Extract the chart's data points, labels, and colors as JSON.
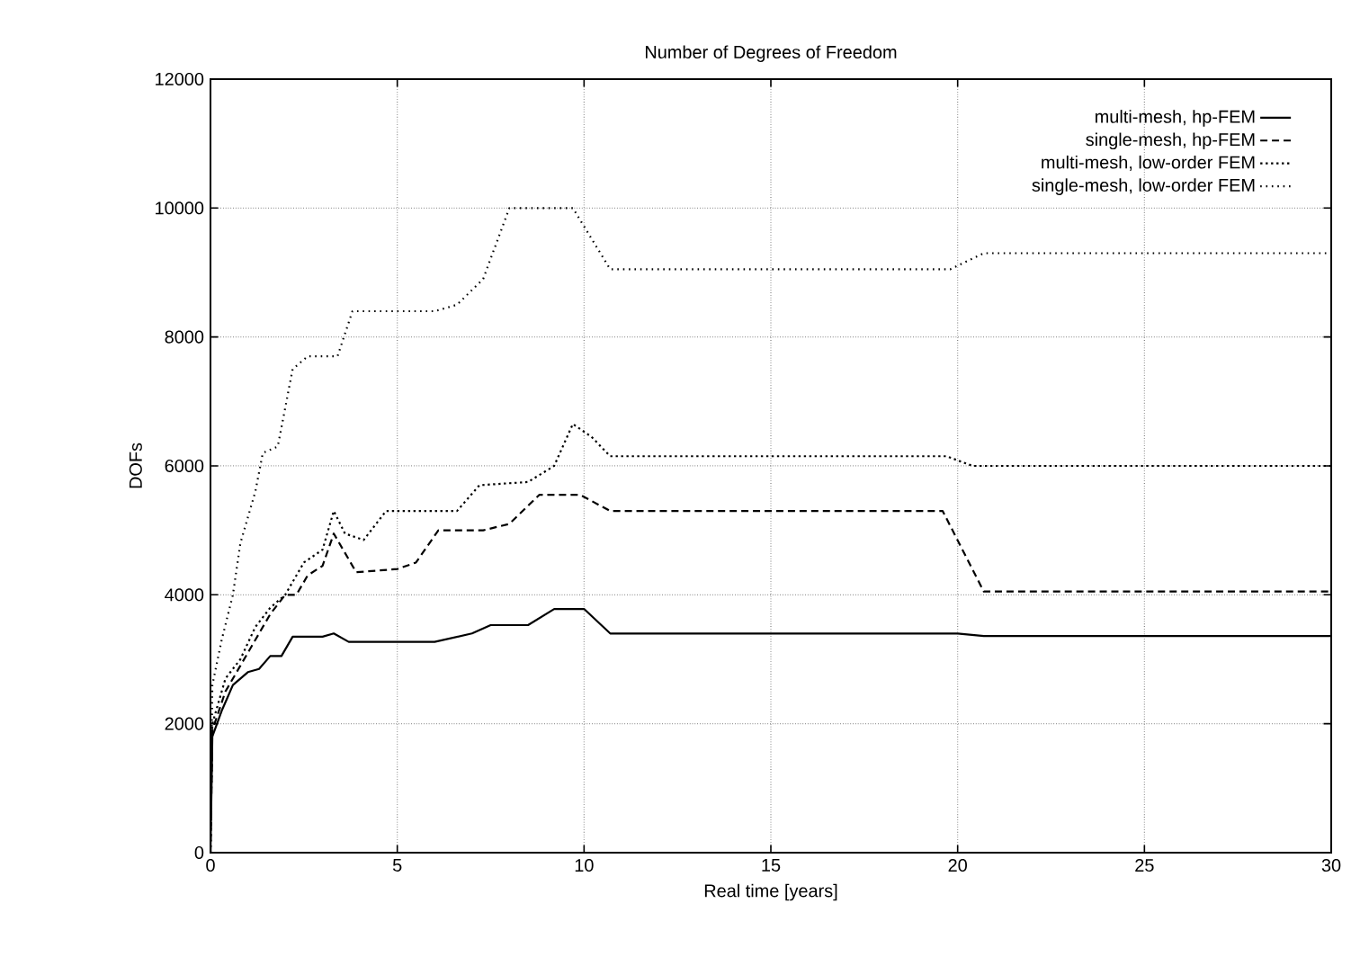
{
  "chart_data": {
    "type": "line",
    "title": "Number of Degrees of Freedom",
    "xlabel": "Real time [years]",
    "ylabel": "DOFs",
    "xlim": [
      0,
      30
    ],
    "ylim": [
      0,
      12000
    ],
    "xticks": [
      0,
      5,
      10,
      15,
      20,
      25,
      30
    ],
    "yticks": [
      0,
      2000,
      4000,
      6000,
      8000,
      10000,
      12000
    ],
    "grid": true,
    "legend": "top right",
    "marker": "none",
    "series": [
      {
        "name": "multi-mesh, hp-FEM",
        "color": "#000000",
        "line_style": "solid",
        "x": [
          0,
          0.05,
          0.3,
          0.6,
          1.0,
          1.3,
          1.6,
          1.9,
          2.2,
          3.0,
          3.3,
          3.7,
          6.0,
          7.0,
          7.5,
          8.5,
          9.2,
          10.0,
          10.7,
          20,
          20.7,
          30
        ],
        "values": [
          0,
          1800,
          2200,
          2600,
          2800,
          2850,
          3050,
          3050,
          3350,
          3350,
          3400,
          3270,
          3270,
          3400,
          3530,
          3530,
          3780,
          3780,
          3400,
          3400,
          3360,
          3360
        ]
      },
      {
        "name": "single-mesh, hp-FEM",
        "color": "#000000",
        "line_style": "dashed",
        "x": [
          0,
          0.05,
          0.4,
          0.8,
          1.2,
          1.6,
          2.0,
          2.3,
          2.6,
          3.0,
          3.3,
          3.9,
          5.0,
          5.5,
          6.1,
          7.3,
          8.0,
          8.8,
          9.9,
          10.7,
          19.6,
          20.7,
          30
        ],
        "values": [
          0,
          1900,
          2500,
          2900,
          3300,
          3700,
          4000,
          4000,
          4300,
          4450,
          4950,
          4350,
          4400,
          4500,
          5000,
          5000,
          5100,
          5550,
          5550,
          5300,
          5300,
          4050,
          4050
        ]
      },
      {
        "name": "multi-mesh, low-order FEM",
        "color": "#000000",
        "line_style": "dotted",
        "x": [
          0,
          0.05,
          0.4,
          0.8,
          1.2,
          1.6,
          2.0,
          2.5,
          3.0,
          3.3,
          3.6,
          4.1,
          4.7,
          6.6,
          7.2,
          8.5,
          9.2,
          9.7,
          10.2,
          10.7,
          19.7,
          20.4,
          30
        ],
        "values": [
          0,
          2000,
          2700,
          3000,
          3500,
          3800,
          4000,
          4500,
          4700,
          5300,
          4950,
          4850,
          5300,
          5300,
          5700,
          5750,
          6000,
          6650,
          6450,
          6150,
          6150,
          6000,
          6000
        ]
      },
      {
        "name": "single-mesh, low-order FEM",
        "color": "#000000",
        "line_style": "dotted",
        "x": [
          0,
          0.05,
          0.3,
          0.6,
          0.8,
          1.2,
          1.4,
          1.8,
          2.2,
          2.6,
          3.4,
          3.8,
          6.0,
          6.6,
          7.3,
          8.0,
          9.7,
          10.7,
          19.8,
          20.7,
          30
        ],
        "values": [
          0,
          2600,
          3300,
          4000,
          4800,
          5600,
          6200,
          6300,
          7500,
          7700,
          7700,
          8400,
          8400,
          8500,
          8900,
          10000,
          10000,
          9050,
          9050,
          9300,
          9300
        ]
      }
    ]
  }
}
